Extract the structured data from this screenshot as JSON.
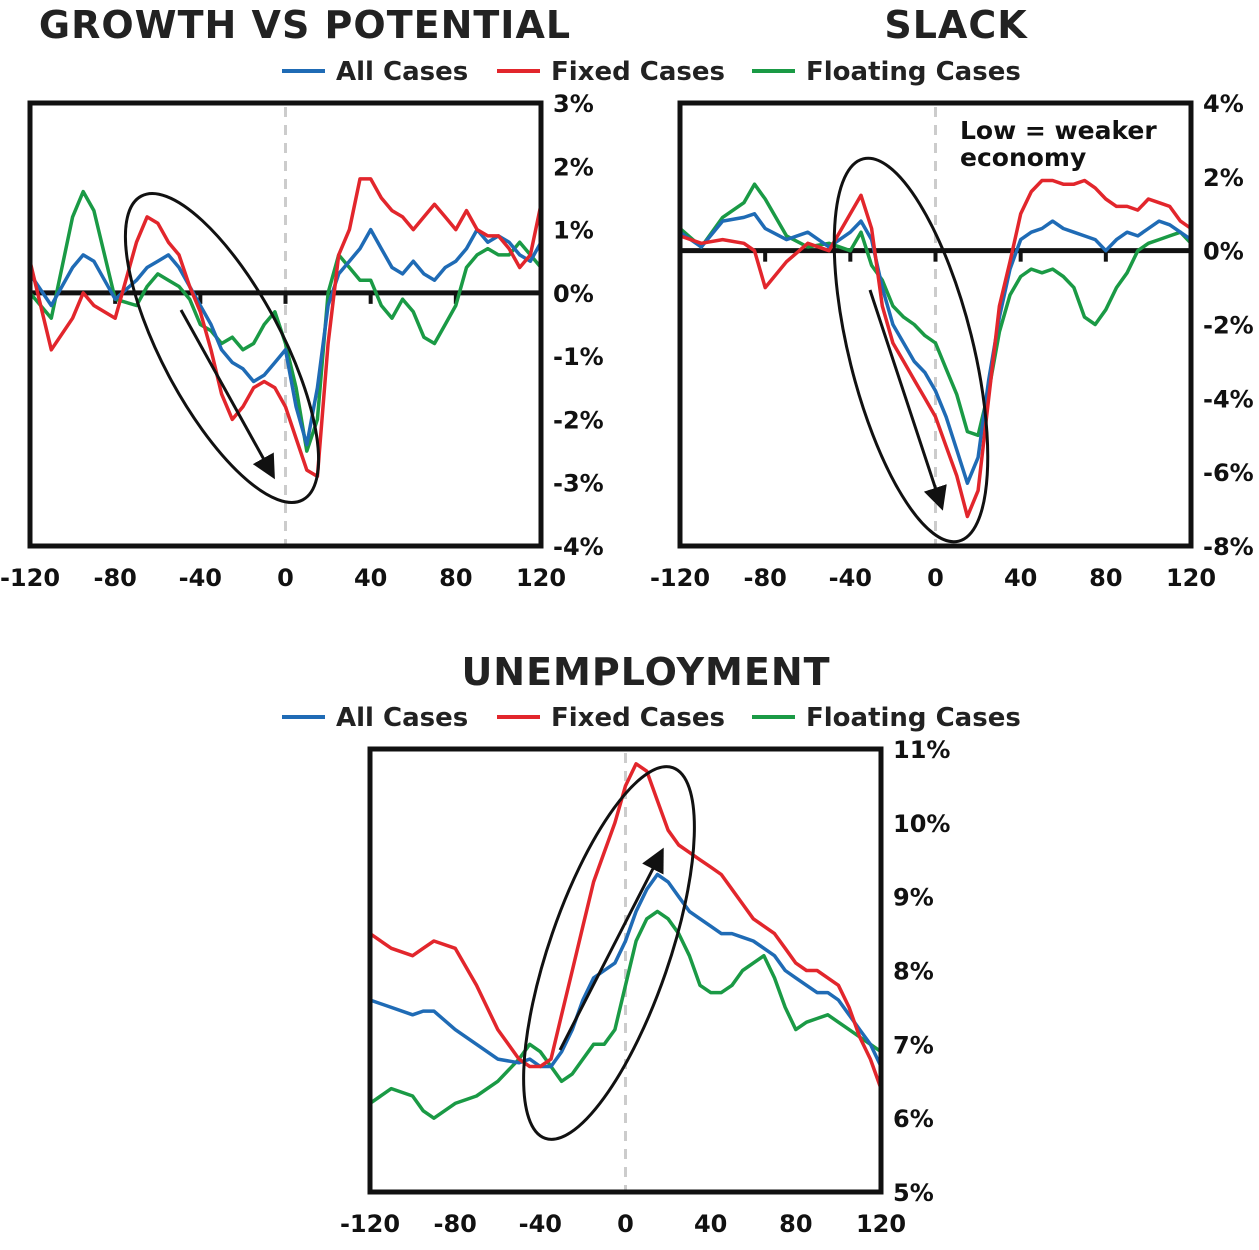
{
  "colors": {
    "all": "#1f6bb5",
    "fixed": "#e2262c",
    "floating": "#1a9a45",
    "frame": "#111111",
    "zero_dashed": "#cccccc"
  },
  "legend": {
    "all": "All Cases",
    "fixed": "Fixed Cases",
    "floating": "Floating Cases"
  },
  "chart_data": [
    {
      "type": "line",
      "title": "GROWTH VS POTENTIAL",
      "xlabel": "",
      "ylabel": "",
      "xlim": [
        -120,
        120
      ],
      "ylim": [
        -4,
        3
      ],
      "x_ticks": [
        "-120",
        "-80",
        "-40",
        "0",
        "40",
        "80",
        "120"
      ],
      "y_ticks": [
        "-4%",
        "-3%",
        "-2%",
        "-1%",
        "0%",
        "1%",
        "2%",
        "3%"
      ],
      "grid": false,
      "legend": "top",
      "x": [
        -120,
        -110,
        -100,
        -95,
        -90,
        -80,
        -70,
        -65,
        -60,
        -55,
        -50,
        -45,
        -40,
        -35,
        -30,
        -25,
        -20,
        -15,
        -10,
        -5,
        0,
        5,
        10,
        15,
        20,
        25,
        30,
        35,
        40,
        45,
        50,
        55,
        60,
        65,
        70,
        75,
        80,
        85,
        90,
        95,
        100,
        105,
        110,
        115,
        120
      ],
      "series": [
        {
          "name": "All Cases",
          "values": [
            0.3,
            -0.2,
            0.4,
            0.6,
            0.5,
            -0.1,
            0.2,
            0.4,
            0.5,
            0.6,
            0.4,
            0.1,
            -0.2,
            -0.5,
            -0.9,
            -1.1,
            -1.2,
            -1.4,
            -1.3,
            -1.1,
            -0.9,
            -1.8,
            -2.4,
            -1.5,
            -0.2,
            0.3,
            0.5,
            0.7,
            1.0,
            0.7,
            0.4,
            0.3,
            0.5,
            0.3,
            0.2,
            0.4,
            0.5,
            0.7,
            1.0,
            0.8,
            0.9,
            0.8,
            0.6,
            0.5,
            0.8
          ]
        },
        {
          "name": "Fixed Cases",
          "values": [
            0.5,
            -0.9,
            -0.4,
            0.0,
            -0.2,
            -0.4,
            0.8,
            1.2,
            1.1,
            0.8,
            0.6,
            0.1,
            -0.3,
            -0.9,
            -1.6,
            -2.0,
            -1.8,
            -1.5,
            -1.4,
            -1.5,
            -1.8,
            -2.3,
            -2.8,
            -2.9,
            -0.8,
            0.6,
            1.0,
            1.8,
            1.8,
            1.5,
            1.3,
            1.2,
            1.0,
            1.2,
            1.4,
            1.2,
            1.0,
            1.3,
            1.0,
            0.9,
            0.9,
            0.7,
            0.4,
            0.6,
            1.4
          ]
        },
        {
          "name": "Floating Cases",
          "values": [
            0.0,
            -0.4,
            1.2,
            1.6,
            1.3,
            -0.1,
            -0.2,
            0.1,
            0.3,
            0.2,
            0.1,
            -0.1,
            -0.5,
            -0.6,
            -0.8,
            -0.7,
            -0.9,
            -0.8,
            -0.5,
            -0.3,
            -0.8,
            -1.5,
            -2.5,
            -2.0,
            0.0,
            0.6,
            0.4,
            0.2,
            0.2,
            -0.2,
            -0.4,
            -0.1,
            -0.3,
            -0.7,
            -0.8,
            -0.5,
            -0.2,
            0.4,
            0.6,
            0.7,
            0.6,
            0.6,
            0.8,
            0.6,
            0.4
          ]
        }
      ]
    },
    {
      "type": "line",
      "title": "SLACK",
      "xlabel": "",
      "ylabel": "",
      "xlim": [
        -120,
        120
      ],
      "ylim": [
        -8,
        4
      ],
      "x_ticks": [
        "-120",
        "-80",
        "-40",
        "0",
        "40",
        "80",
        "120"
      ],
      "y_ticks": [
        "-8%",
        "-6%",
        "-4%",
        "-2%",
        "0%",
        "2%",
        "4%"
      ],
      "grid": false,
      "legend": "top",
      "annotation": [
        "Low = weaker",
        "economy"
      ],
      "x": [
        -120,
        -110,
        -100,
        -90,
        -85,
        -80,
        -70,
        -60,
        -50,
        -40,
        -35,
        -30,
        -25,
        -20,
        -15,
        -10,
        -5,
        0,
        5,
        10,
        15,
        20,
        25,
        30,
        35,
        40,
        45,
        50,
        55,
        60,
        65,
        70,
        75,
        80,
        85,
        90,
        95,
        100,
        105,
        110,
        115,
        120
      ],
      "series": [
        {
          "name": "All Cases",
          "values": [
            0.5,
            0.1,
            0.8,
            0.9,
            1.0,
            0.6,
            0.3,
            0.5,
            0.1,
            0.5,
            0.8,
            0.3,
            -1.0,
            -2.0,
            -2.5,
            -3.0,
            -3.3,
            -3.8,
            -4.5,
            -5.4,
            -6.3,
            -5.6,
            -3.5,
            -1.8,
            -0.5,
            0.3,
            0.5,
            0.6,
            0.8,
            0.6,
            0.5,
            0.4,
            0.3,
            0.0,
            0.3,
            0.5,
            0.4,
            0.6,
            0.8,
            0.7,
            0.5,
            0.3
          ]
        },
        {
          "name": "Fixed Cases",
          "values": [
            0.4,
            0.2,
            0.3,
            0.2,
            0.0,
            -1.0,
            -0.3,
            0.2,
            0.0,
            1.0,
            1.5,
            0.6,
            -1.5,
            -2.5,
            -3.0,
            -3.5,
            -4.0,
            -4.5,
            -5.3,
            -6.1,
            -7.2,
            -6.5,
            -4.0,
            -1.5,
            -0.3,
            1.0,
            1.6,
            1.9,
            1.9,
            1.8,
            1.8,
            1.9,
            1.7,
            1.4,
            1.2,
            1.2,
            1.1,
            1.4,
            1.3,
            1.2,
            0.8,
            0.6
          ]
        },
        {
          "name": "Floating Cases",
          "values": [
            0.6,
            0.1,
            0.9,
            1.3,
            1.8,
            1.4,
            0.4,
            0.1,
            0.2,
            0.0,
            0.5,
            -0.4,
            -0.8,
            -1.5,
            -1.8,
            -2.0,
            -2.3,
            -2.5,
            -3.2,
            -3.9,
            -4.9,
            -5.0,
            -3.8,
            -2.2,
            -1.2,
            -0.7,
            -0.5,
            -0.6,
            -0.5,
            -0.7,
            -1.0,
            -1.8,
            -2.0,
            -1.6,
            -1.0,
            -0.6,
            0.0,
            0.2,
            0.3,
            0.4,
            0.5,
            0.2
          ]
        }
      ]
    },
    {
      "type": "line",
      "title": "UNEMPLOYMENT",
      "xlabel": "",
      "ylabel": "",
      "xlim": [
        -120,
        120
      ],
      "ylim": [
        5,
        11
      ],
      "x_ticks": [
        "-120",
        "-80",
        "-40",
        "0",
        "40",
        "80",
        "120"
      ],
      "y_ticks": [
        "5%",
        "6%",
        "7%",
        "8%",
        "9%",
        "10%",
        "11%"
      ],
      "grid": false,
      "legend": "top",
      "x": [
        -120,
        -110,
        -100,
        -95,
        -90,
        -80,
        -70,
        -60,
        -50,
        -45,
        -40,
        -35,
        -30,
        -25,
        -20,
        -15,
        -10,
        -5,
        0,
        5,
        10,
        15,
        20,
        25,
        30,
        35,
        40,
        45,
        50,
        55,
        60,
        65,
        70,
        75,
        80,
        85,
        90,
        95,
        100,
        105,
        110,
        115,
        120
      ],
      "series": [
        {
          "name": "All Cases",
          "values": [
            7.6,
            7.5,
            7.4,
            7.45,
            7.45,
            7.2,
            7.0,
            6.8,
            6.75,
            6.8,
            6.7,
            6.7,
            6.9,
            7.2,
            7.6,
            7.9,
            8.0,
            8.1,
            8.4,
            8.8,
            9.1,
            9.3,
            9.2,
            9.0,
            8.8,
            8.7,
            8.6,
            8.5,
            8.5,
            8.45,
            8.4,
            8.3,
            8.2,
            8.0,
            7.9,
            7.8,
            7.7,
            7.7,
            7.6,
            7.4,
            7.2,
            7.0,
            6.7
          ]
        },
        {
          "name": "Fixed Cases",
          "values": [
            8.5,
            8.3,
            8.2,
            8.3,
            8.4,
            8.3,
            7.8,
            7.2,
            6.8,
            6.7,
            6.7,
            6.8,
            7.4,
            8.0,
            8.6,
            9.2,
            9.6,
            10.0,
            10.5,
            10.8,
            10.7,
            10.3,
            9.9,
            9.7,
            9.6,
            9.5,
            9.4,
            9.3,
            9.1,
            8.9,
            8.7,
            8.6,
            8.5,
            8.3,
            8.1,
            8.0,
            8.0,
            7.9,
            7.8,
            7.5,
            7.1,
            6.8,
            6.4
          ]
        },
        {
          "name": "Floating Cases",
          "values": [
            6.2,
            6.4,
            6.3,
            6.1,
            6.0,
            6.2,
            6.3,
            6.5,
            6.8,
            7.0,
            6.9,
            6.7,
            6.5,
            6.6,
            6.8,
            7.0,
            7.0,
            7.2,
            7.8,
            8.4,
            8.7,
            8.8,
            8.7,
            8.5,
            8.2,
            7.8,
            7.7,
            7.7,
            7.8,
            8.0,
            8.1,
            8.2,
            7.9,
            7.5,
            7.2,
            7.3,
            7.35,
            7.4,
            7.3,
            7.2,
            7.1,
            7.0,
            6.9
          ]
        }
      ]
    }
  ]
}
